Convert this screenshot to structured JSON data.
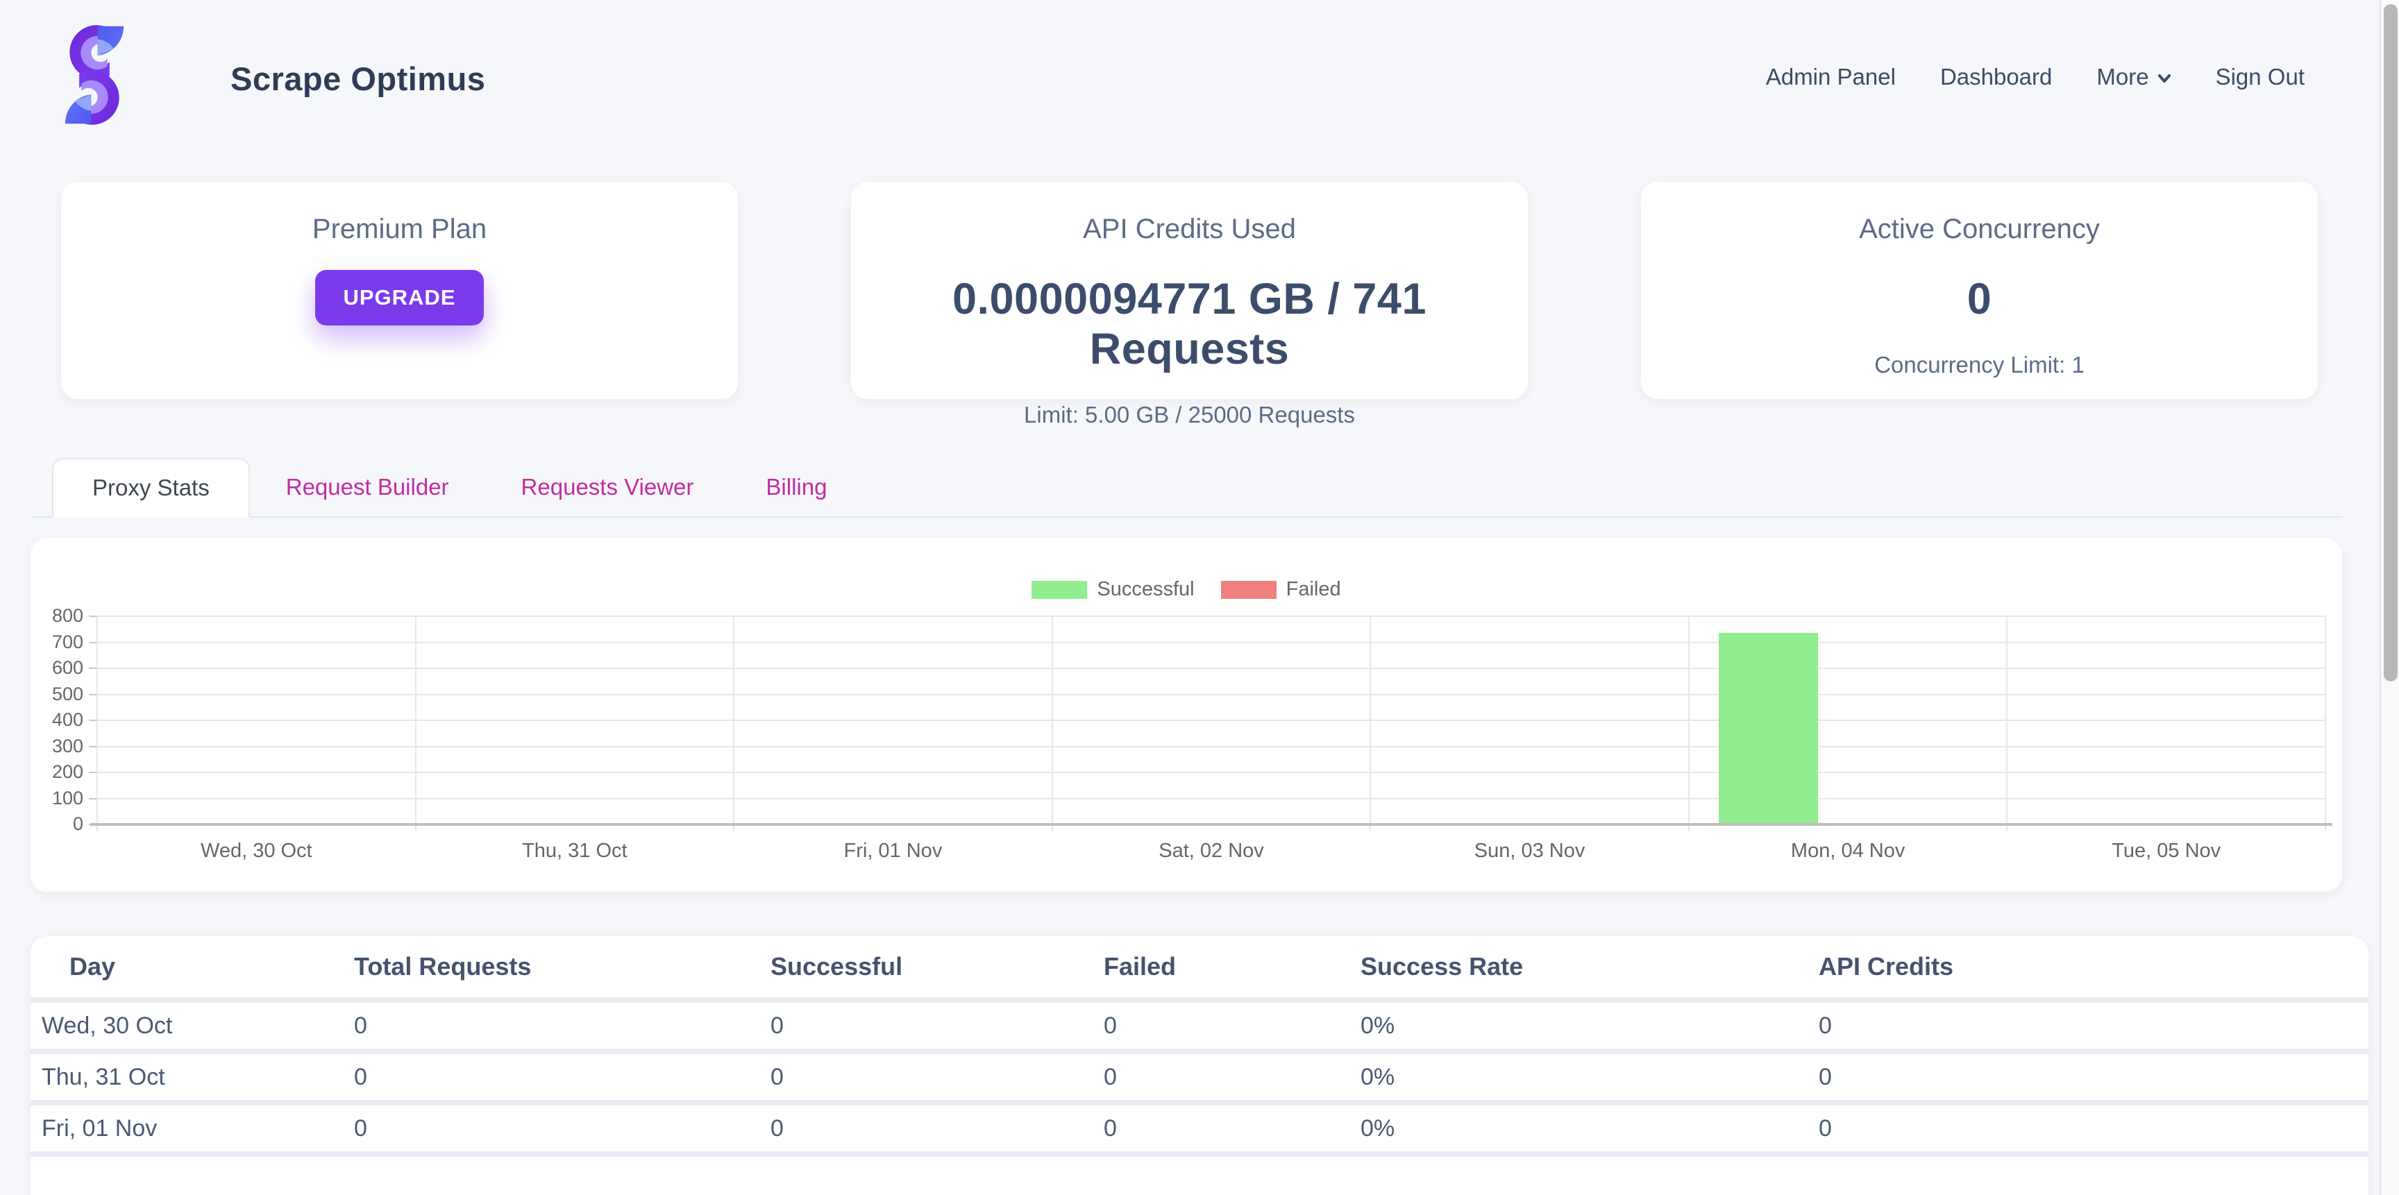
{
  "brand": {
    "name": "Scrape Optimus"
  },
  "nav": {
    "items": [
      "Admin Panel",
      "Dashboard"
    ],
    "more_label": "More",
    "sign_out_label": "Sign Out"
  },
  "cards": {
    "plan": {
      "title": "Premium Plan",
      "button_label": "UPGRADE"
    },
    "credits": {
      "title": "API Credits Used",
      "value": "0.0000094771 GB / 741 Requests",
      "limit": "Limit: 5.00 GB / 25000 Requests"
    },
    "concurrency": {
      "title": "Active Concurrency",
      "value": "0",
      "limit": "Concurrency Limit: 1"
    }
  },
  "tabs": [
    {
      "label": "Proxy Stats",
      "active": true
    },
    {
      "label": "Request Builder",
      "active": false
    },
    {
      "label": "Requests Viewer",
      "active": false
    },
    {
      "label": "Billing",
      "active": false
    }
  ],
  "chart_data": {
    "type": "bar",
    "categories": [
      "Wed, 30 Oct",
      "Thu, 31 Oct",
      "Fri, 01 Nov",
      "Sat, 02 Nov",
      "Sun, 03 Nov",
      "Mon, 04 Nov",
      "Tue, 05 Nov"
    ],
    "series": [
      {
        "name": "Successful",
        "color": "#90EE90",
        "values": [
          0,
          0,
          0,
          0,
          0,
          735,
          0
        ]
      },
      {
        "name": "Failed",
        "color": "#F08080",
        "values": [
          0,
          0,
          0,
          0,
          0,
          6,
          0
        ]
      }
    ],
    "title": "",
    "xlabel": "",
    "ylabel": "",
    "ylim": [
      0,
      800
    ],
    "ytick_step": 100,
    "grid": true,
    "legend_position": "top"
  },
  "table": {
    "columns": [
      "Day",
      "Total Requests",
      "Successful",
      "Failed",
      "Success Rate",
      "API Credits"
    ],
    "rows": [
      [
        "Wed, 30 Oct",
        "0",
        "0",
        "0",
        "0%",
        "0"
      ],
      [
        "Thu, 31 Oct",
        "0",
        "0",
        "0",
        "0%",
        "0"
      ],
      [
        "Fri, 01 Nov",
        "0",
        "0",
        "0",
        "0%",
        "0"
      ]
    ]
  },
  "colors": {
    "accent_purple": "#7c3aed",
    "tab_pink": "#c22ba4",
    "success_green": "#90EE90",
    "failed_red": "#F08080",
    "text_navy": "#3d4c6b",
    "muted": "#5c6b86",
    "page_bg": "#f6f7fa"
  }
}
